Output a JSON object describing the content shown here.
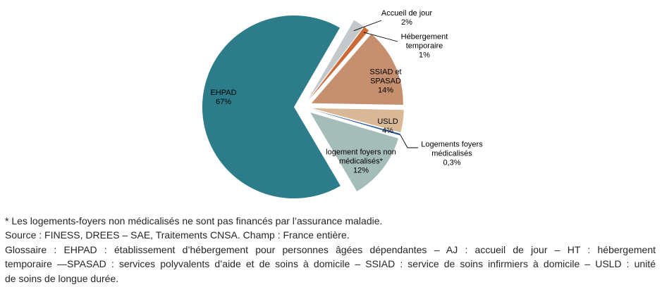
{
  "chart_data": {
    "type": "pie",
    "title": "",
    "unit": "%",
    "layout": {
      "start_angle_deg": 30,
      "exploded": true,
      "legend": "none",
      "labels": "on-slice-and-callout"
    },
    "slices": [
      {
        "label": "Accueil de jour",
        "value": 2,
        "pct_label": "2%",
        "color": "#c3c8cc",
        "callout": true
      },
      {
        "label": "Hébergement temporaire",
        "value": 1,
        "pct_label": "1%",
        "color": "#cb6a35",
        "callout": true
      },
      {
        "label": "SSIAD et SPASAD",
        "value": 14,
        "pct_label": "14%",
        "color": "#c68f6e",
        "callout": false
      },
      {
        "label": "USLD",
        "value": 4,
        "pct_label": "4%",
        "color": "#d9b897",
        "callout": false
      },
      {
        "label": "Logements foyers médicalisés",
        "value": 0.3,
        "pct_label": "0,3%",
        "color": "#2e5e9e",
        "callout": true
      },
      {
        "label": "logement foyers non médicalisés*",
        "value": 12,
        "pct_label": "12%",
        "color": "#a5bdb9",
        "callout": false
      },
      {
        "label": "EHPAD",
        "value": 67,
        "pct_label": "67%",
        "color": "#2c7c8a",
        "callout": false
      }
    ]
  },
  "notes": {
    "footnote": "* Les logements-foyers non médicalisés ne sont pas financés par l’assurance maladie.",
    "source": "Source : FINESS, DREES – SAE, Traitements CNSA. Champ : France entière.",
    "glossary_lines": [
      "Glossaire : EHPAD : établissement d’hébergement pour personnes âgées dépendantes – AJ : accueil de jour – HT : hébergement",
      "temporaire —SPASAD : services polyvalents d’aide et de soins à domicile – SSIAD : service de soins infirmiers à domicile – USLD : unité",
      "de soins de longue durée."
    ]
  }
}
